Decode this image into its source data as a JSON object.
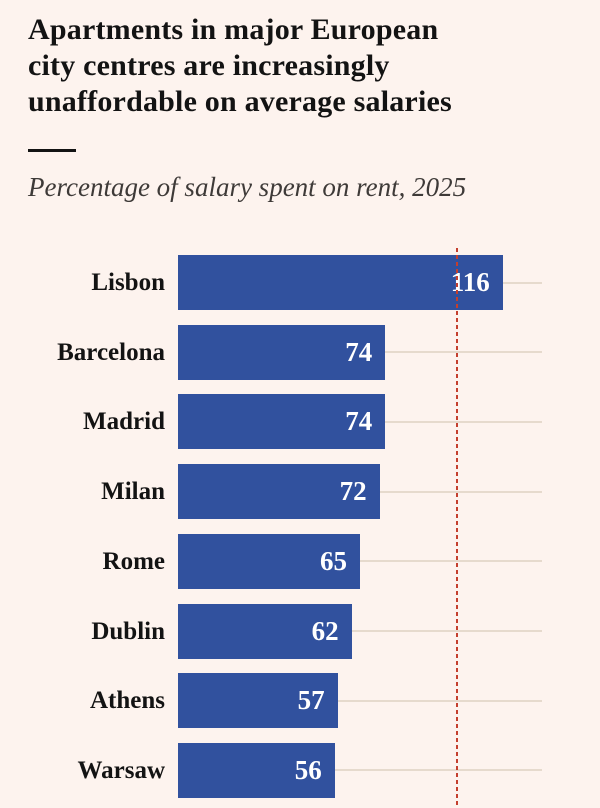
{
  "header": {
    "title_lines": [
      "Apartments in major European",
      "city centres are increasingly",
      "unaffordable on average salaries"
    ],
    "subtitle": "Percentage of salary spent on rent, 2025"
  },
  "chart_data": {
    "type": "bar",
    "orientation": "horizontal",
    "title": "Apartments in major European city centres are increasingly unaffordable on average salaries",
    "subtitle": "Percentage of salary spent on rent, 2025",
    "categories": [
      "Lisbon",
      "Barcelona",
      "Madrid",
      "Milan",
      "Rome",
      "Dublin",
      "Athens",
      "Warsaw"
    ],
    "values": [
      116,
      74,
      74,
      72,
      65,
      62,
      57,
      56
    ],
    "value_labels": [
      "116",
      "74",
      "74",
      "72",
      "65",
      "62",
      "57",
      "56"
    ],
    "xlim": [
      0,
      130
    ],
    "grid": true,
    "gridline_orientation": "horizontal-per-row",
    "reference_line": {
      "value": 100,
      "style": "dotted"
    },
    "legend": "none",
    "value_label_position": "inside-end"
  },
  "colors": {
    "background": "#fdf3ee",
    "bar": "#31519e",
    "bar_value_text": "#ffffff",
    "title_text": "#131313",
    "subtitle_text": "#3e3a38",
    "gridline": "#e6dacd",
    "reference_line": "#c43f2e"
  }
}
